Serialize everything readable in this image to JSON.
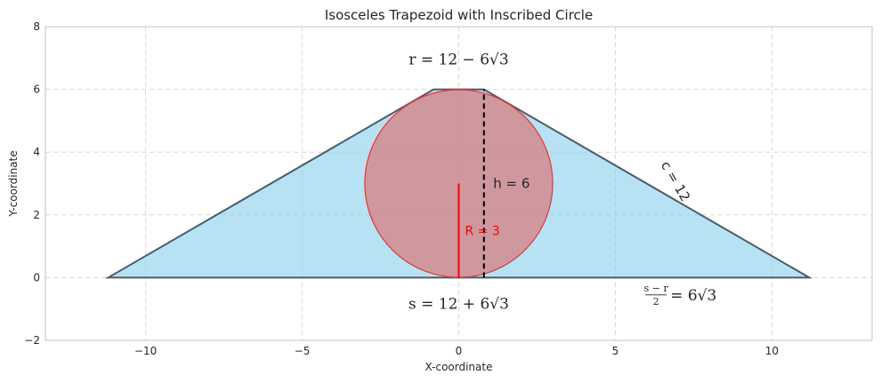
{
  "chart_data": {
    "type": "diagram",
    "title": "Isosceles Trapezoid with Inscribed Circle",
    "xlabel": "X-coordinate",
    "ylabel": "Y-coordinate",
    "xlim": [
      -13.2,
      13.2
    ],
    "ylim": [
      -2,
      8
    ],
    "xticks": [
      -10,
      -5,
      0,
      5,
      10
    ],
    "xtick_labels": [
      "−10",
      "−5",
      "0",
      "5",
      "10"
    ],
    "yticks": [
      -2,
      0,
      2,
      4,
      6,
      8
    ],
    "ytick_labels": [
      "−2",
      "0",
      "2",
      "4",
      "6",
      "8"
    ],
    "grid": true,
    "trapezoid": {
      "vertices": [
        [
          -11.196,
          0
        ],
        [
          11.196,
          0
        ],
        [
          0.804,
          6
        ],
        [
          -0.804,
          6
        ]
      ],
      "fill": "#87ceeb",
      "stroke": "#4f5b66"
    },
    "circle": {
      "center": [
        0,
        3
      ],
      "radius": 3,
      "fill": "#e06666",
      "stroke": "#e8353a"
    },
    "radius_segment": {
      "from": [
        0,
        0
      ],
      "to": [
        0,
        3
      ],
      "color": "#ff0000"
    },
    "height_segment": {
      "from": [
        0.804,
        0
      ],
      "to": [
        0.804,
        6
      ],
      "color": "#000000"
    },
    "annotations": {
      "r_label": {
        "text": "r = 12 − 6√3",
        "x": 0,
        "y": 6.8
      },
      "s_label": {
        "text": "s = 12 + 6√3",
        "x": 0,
        "y": -1.0
      },
      "h_label": {
        "text": "h = 6",
        "x": 1.1,
        "y": 3.0
      },
      "R_label": {
        "text": "R = 3",
        "x": 0.2,
        "y": 1.5
      },
      "c_label": {
        "text": "c = 12",
        "x": 6.8,
        "y": 3.0,
        "rotation": -60
      },
      "half_diff_label": {
        "numerator": "s − r",
        "denominator": "2",
        "rest": "= 6√3",
        "x": 6.3,
        "y": -0.55
      }
    }
  }
}
